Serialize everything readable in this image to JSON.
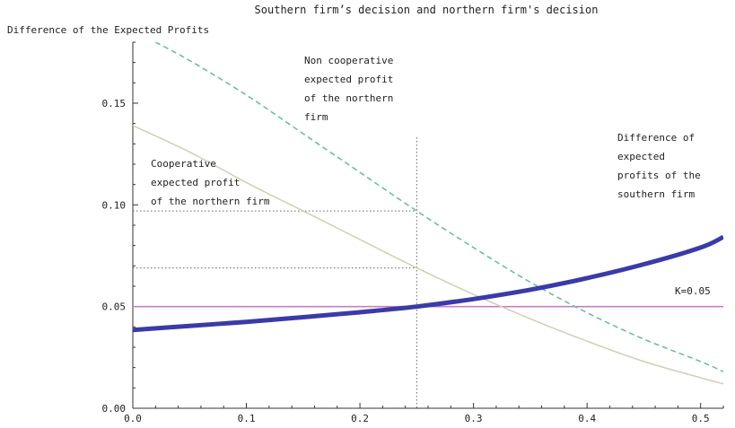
{
  "chart_data": {
    "type": "line",
    "title": "Southern firm’s decision and northern firm's decision",
    "ylabel": "Difference of the Expected Profits",
    "xlabel": "",
    "xlim": [
      0,
      0.52
    ],
    "ylim": [
      0,
      0.18
    ],
    "x_ticks": [
      {
        "value": 0.0,
        "label": "0.0"
      },
      {
        "value": 0.1,
        "label": "0.1"
      },
      {
        "value": 0.2,
        "label": "0.2"
      },
      {
        "value": 0.3,
        "label": "0.3"
      },
      {
        "value": 0.4,
        "label": "0.4"
      },
      {
        "value": 0.5,
        "label": "0.5"
      }
    ],
    "y_ticks": [
      {
        "value": 0.0,
        "label": "0.00"
      },
      {
        "value": 0.05,
        "label": "0.05"
      },
      {
        "value": 0.1,
        "label": "0.10"
      },
      {
        "value": 0.15,
        "label": "0.15"
      }
    ],
    "grid": false,
    "series": [
      {
        "key": "southern",
        "style": "solid-thick",
        "color": "#3a3aa8",
        "x": [
          0,
          0.05,
          0.1,
          0.15,
          0.2,
          0.25,
          0.3,
          0.35,
          0.4,
          0.45,
          0.5,
          0.52
        ],
        "y": [
          0.0385,
          0.0405,
          0.0425,
          0.0448,
          0.0472,
          0.05,
          0.0537,
          0.0583,
          0.064,
          0.0708,
          0.079,
          0.0842
        ]
      },
      {
        "key": "noncooperative",
        "style": "dashed",
        "color": "#6dbfa0",
        "x": [
          0.02,
          0.05,
          0.1,
          0.15,
          0.2,
          0.25,
          0.3,
          0.35,
          0.4,
          0.45,
          0.5,
          0.52
        ],
        "y": [
          0.18,
          0.171,
          0.154,
          0.135,
          0.116,
          0.097,
          0.079,
          0.062,
          0.047,
          0.034,
          0.023,
          0.018
        ]
      },
      {
        "key": "cooperative",
        "style": "solid-thin",
        "color": "#cfcfb8",
        "x": [
          0,
          0.05,
          0.1,
          0.15,
          0.2,
          0.25,
          0.3,
          0.35,
          0.4,
          0.45,
          0.5,
          0.52
        ],
        "y": [
          0.139,
          0.126,
          0.111,
          0.097,
          0.083,
          0.069,
          0.056,
          0.044,
          0.033,
          0.023,
          0.015,
          0.012
        ]
      }
    ],
    "threshold": {
      "y": 0.05,
      "label": "K=0.05",
      "color": "#c47fc4"
    },
    "reference_lines": {
      "vertical_x": 0.25,
      "horizontal_ys": [
        0.097,
        0.069
      ]
    },
    "annotations": {
      "noncoop": [
        "Non cooperative",
        "expected profit",
        "of the northern",
        "firm"
      ],
      "coop": [
        "Cooperative",
        "expected profit",
        "of the northern firm"
      ],
      "southern": [
        "Difference of",
        "expected",
        "profits of the",
        "southern firm"
      ]
    }
  }
}
